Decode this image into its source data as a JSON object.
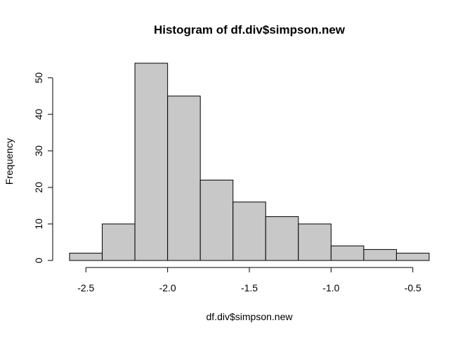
{
  "chart_data": {
    "type": "bar",
    "title": "Histogram of df.div$simpson.new",
    "xlabel": "df.div$simpson.new",
    "ylabel": "Frequency",
    "bins": [
      {
        "start": -2.6,
        "end": -2.4,
        "count": 2
      },
      {
        "start": -2.4,
        "end": -2.2,
        "count": 10
      },
      {
        "start": -2.2,
        "end": -2.0,
        "count": 54
      },
      {
        "start": -2.0,
        "end": -1.8,
        "count": 45
      },
      {
        "start": -1.8,
        "end": -1.6,
        "count": 22
      },
      {
        "start": -1.6,
        "end": -1.4,
        "count": 16
      },
      {
        "start": -1.4,
        "end": -1.2,
        "count": 12
      },
      {
        "start": -1.2,
        "end": -1.0,
        "count": 10
      },
      {
        "start": -1.0,
        "end": -0.8,
        "count": 4
      },
      {
        "start": -0.8,
        "end": -0.6,
        "count": 3
      },
      {
        "start": -0.6,
        "end": -0.4,
        "count": 2
      }
    ],
    "xlim": [
      -2.6,
      -0.4
    ],
    "ylim": [
      0,
      54
    ],
    "x_ticks": [
      -2.5,
      -2.0,
      -1.5,
      -1.0,
      -0.5
    ],
    "x_tick_labels": [
      "-2.5",
      "-2.0",
      "-1.5",
      "-1.0",
      "-0.5"
    ],
    "y_ticks": [
      0,
      10,
      20,
      30,
      40,
      50
    ],
    "y_tick_labels": [
      "0",
      "10",
      "20",
      "30",
      "40",
      "50"
    ],
    "bar_color": "#c8c8c8",
    "border_color": "#000000",
    "grid": false,
    "legend": "none"
  }
}
